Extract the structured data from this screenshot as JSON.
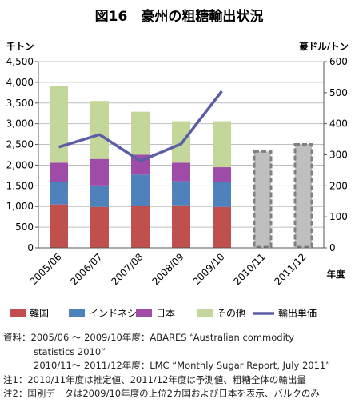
{
  "chart_data": {
    "type": "bar",
    "stacked": true,
    "title": "図16　豪州の粗糖輸出状況",
    "y_left_unit": "千トン",
    "y_right_unit": "豪ドル/トン",
    "x_unit": "年度",
    "categories": [
      "2005/06",
      "2006/07",
      "2007/08",
      "2008/09",
      "2009/10",
      "2010/11",
      "2011/12"
    ],
    "ylim_left": [
      0,
      4500
    ],
    "ylim_right": [
      0,
      600
    ],
    "yticks_left": [
      "0",
      "500",
      "1,000",
      "1,500",
      "2,000",
      "2,500",
      "3,000",
      "3,500",
      "4,000",
      "4,500"
    ],
    "yticks_right": [
      "0",
      "100",
      "200",
      "300",
      "400",
      "500",
      "600"
    ],
    "series": [
      {
        "name": "韓国",
        "type": "bar",
        "color": "#c0504d",
        "values": [
          1050,
          990,
          1010,
          1030,
          990,
          null,
          null
        ]
      },
      {
        "name": "インドネシア",
        "type": "bar",
        "color": "#4f81bd",
        "values": [
          550,
          520,
          760,
          580,
          610,
          null,
          null
        ]
      },
      {
        "name": "日本",
        "type": "bar",
        "color": "#9e4ca8",
        "values": [
          460,
          640,
          480,
          450,
          350,
          null,
          null
        ]
      },
      {
        "name": "その他",
        "type": "bar",
        "color": "#c4d79b",
        "values": [
          1850,
          1400,
          1040,
          1000,
          1110,
          null,
          null
        ]
      },
      {
        "name": "輸出単価",
        "type": "line",
        "axis": "right",
        "color": "#5b5ea6",
        "values": [
          325,
          365,
          280,
          335,
          505,
          null,
          null
        ]
      }
    ],
    "totals_dashed": {
      "color": "#808080",
      "fill": "#bfbfbf",
      "values": [
        null,
        null,
        null,
        null,
        null,
        2350,
        2520
      ]
    }
  },
  "notes": {
    "line1": "資料：2005/06 ～ 2009/10年度：ABARES “Australian commodity",
    "line2": "statistics 2010”",
    "line3": "2010/11～ 2011/12年度：LMC “Monthly Sugar Report, July 2011”",
    "line4": "注1：2010/11年度は推定値、2011/12年度は予測値、粗糖全体の輸出量",
    "line5": "注2：国別データは2009/10年度の上位2カ国および日本を表示、バルクのみ"
  }
}
